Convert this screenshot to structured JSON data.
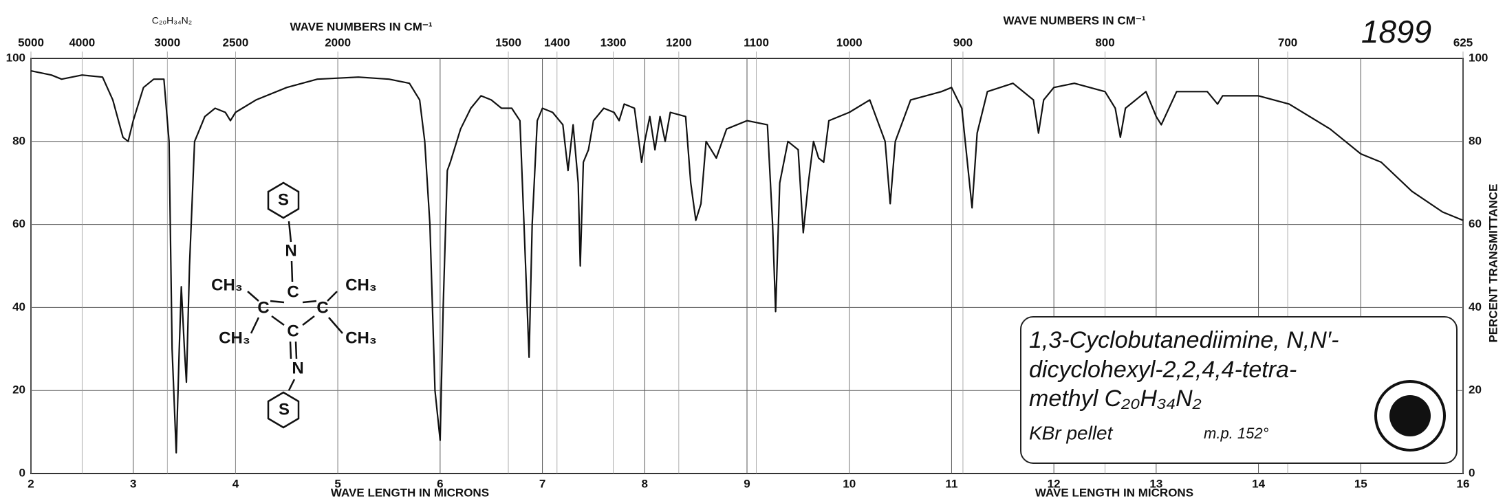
{
  "chart_data": {
    "type": "line",
    "top_axis_title": "WAVE NUMBERS IN CM⁻¹",
    "bottom_axis_title": "WAVE LENGTH IN MICRONS",
    "right_axis_title": "PERCENT TRANSMITTANCE",
    "formula_header": "C₂₀H₃₄N₂",
    "spectrum_number": "1899",
    "xlim": [
      2,
      16
    ],
    "xticks": [
      2,
      3,
      4,
      5,
      6,
      7,
      8,
      9,
      10,
      11,
      12,
      13,
      14,
      15,
      16
    ],
    "ylim": [
      0,
      100
    ],
    "yticks": [
      0,
      20,
      40,
      60,
      80,
      100
    ],
    "top_ticks": [
      5000,
      4000,
      3000,
      2500,
      2000,
      1500,
      1400,
      1300,
      1200,
      1100,
      1000,
      900,
      800,
      700,
      625
    ],
    "grid": true,
    "series": [
      {
        "color": "#111",
        "x": [
          2.0,
          2.2,
          2.3,
          2.5,
          2.7,
          2.8,
          2.9,
          2.95,
          3.0,
          3.1,
          3.2,
          3.3,
          3.35,
          3.38,
          3.42,
          3.45,
          3.47,
          3.5,
          3.52,
          3.55,
          3.6,
          3.65,
          3.7,
          3.8,
          3.9,
          3.95,
          4.0,
          4.2,
          4.5,
          4.8,
          5.2,
          5.5,
          5.7,
          5.8,
          5.85,
          5.9,
          5.95,
          6.0,
          6.03,
          6.07,
          6.1,
          6.2,
          6.3,
          6.4,
          6.5,
          6.6,
          6.7,
          6.78,
          6.82,
          6.87,
          6.9,
          6.95,
          7.0,
          7.1,
          7.2,
          7.25,
          7.3,
          7.35,
          7.37,
          7.4,
          7.45,
          7.5,
          7.6,
          7.7,
          7.75,
          7.8,
          7.9,
          7.97,
          8.0,
          8.05,
          8.1,
          8.15,
          8.2,
          8.25,
          8.4,
          8.45,
          8.5,
          8.55,
          8.6,
          8.65,
          8.7,
          8.8,
          9.0,
          9.2,
          9.25,
          9.28,
          9.32,
          9.4,
          9.5,
          9.55,
          9.6,
          9.65,
          9.7,
          9.75,
          9.8,
          10.0,
          10.2,
          10.35,
          10.4,
          10.45,
          10.6,
          10.9,
          11.0,
          11.1,
          11.2,
          11.25,
          11.35,
          11.6,
          11.8,
          11.85,
          11.9,
          12.0,
          12.2,
          12.5,
          12.6,
          12.65,
          12.7,
          12.9,
          13.0,
          13.05,
          13.2,
          13.5,
          13.6,
          13.65,
          14.0,
          14.3,
          14.7,
          15.0,
          15.2,
          15.5,
          15.8,
          16.0
        ],
        "values": [
          97,
          96,
          95,
          96,
          95.5,
          90,
          81,
          80,
          85,
          93,
          95,
          95,
          80,
          30,
          5,
          30,
          45,
          30,
          22,
          50,
          80,
          83,
          86,
          88,
          87,
          85,
          87,
          90,
          93,
          95,
          95.5,
          95,
          94,
          90,
          80,
          60,
          20,
          8,
          40,
          73,
          75,
          83,
          88,
          91,
          90,
          88,
          88,
          85,
          60,
          28,
          60,
          85,
          88,
          87,
          84,
          73,
          84,
          70,
          50,
          75,
          78,
          85,
          88,
          87,
          85,
          89,
          88,
          75,
          80,
          86,
          78,
          86,
          80,
          87,
          86,
          70,
          61,
          65,
          80,
          78,
          76,
          83,
          85,
          84,
          60,
          39,
          70,
          80,
          78,
          58,
          70,
          80,
          76,
          75,
          85,
          87,
          90,
          80,
          65,
          80,
          90,
          92,
          93,
          88,
          64,
          82,
          92,
          94,
          90,
          82,
          90,
          93,
          94,
          92,
          88,
          81,
          88,
          92,
          86,
          84,
          92,
          92,
          89,
          91,
          91,
          89,
          83,
          77,
          75,
          68,
          63,
          61
        ]
      }
    ]
  },
  "structure": {
    "top_ring": "S",
    "top_n": "N",
    "c1": "C",
    "c2": "C",
    "c3": "C",
    "c4": "C",
    "me1": "CH₃",
    "me2": "CH₃",
    "me3": "CH₃",
    "me4": "CH₃",
    "bottom_n": "N",
    "bottom_ring": "S"
  },
  "note": {
    "lines": [
      "1,3-Cyclobutanediimine, N,N′-",
      "dicyclohexyl-2,2,4,4-tetra-",
      "methyl  C₂₀H₃₄N₂"
    ],
    "medium": "KBr pellet",
    "melting_point": "m.p. 152°"
  }
}
